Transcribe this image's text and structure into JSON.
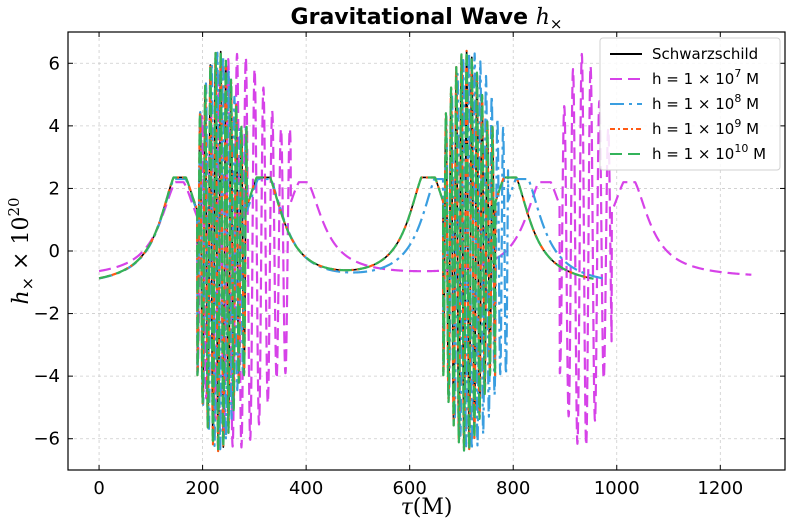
{
  "chart_data": {
    "type": "line",
    "title": "Gravitational Wave h×",
    "title_main": "Gravitational Wave ",
    "title_symbol": "h",
    "title_subscript": "×",
    "xlabel": "τ(M)",
    "xlabel_symbol": "τ",
    "xlabel_unit": "(M)",
    "ylabel": "h× × 10^20",
    "ylabel_symbol": "h",
    "ylabel_subscript": "×",
    "ylabel_factor": " × 10",
    "ylabel_exponent": "20",
    "xlim": [
      -60,
      1325
    ],
    "ylim": [
      -7,
      7
    ],
    "xticks": [
      0,
      200,
      400,
      600,
      800,
      1000,
      1200
    ],
    "xtick_labels": [
      "0",
      "200",
      "400",
      "600",
      "800",
      "1000",
      "1200"
    ],
    "yticks": [
      -6,
      -4,
      -2,
      0,
      2,
      4,
      6
    ],
    "ytick_labels": [
      "−6",
      "−4",
      "−2",
      "0",
      "2",
      "4",
      "6"
    ],
    "grid": true,
    "legend_position": "top-right",
    "series": [
      {
        "name": "Schwarzschild",
        "legend_label": "Schwarzschild",
        "color": "#000000",
        "dash": "solid",
        "baseline": -1.2,
        "peak": 2.35,
        "burst_amplitude": 6.4,
        "peaks": [
          155,
          318,
          635,
          795
        ],
        "bursts": [
          [
            190,
            285
          ],
          [
            665,
            765
          ]
        ],
        "t_range": [
          0,
          955
        ],
        "cycle_period": 10
      },
      {
        "name": "h = 1×10^7 M",
        "legend_prefix": "h = 1 × 10",
        "legend_exp": "7",
        "legend_suffix": " M",
        "color": "#d642e8",
        "dash": "dashed",
        "baseline": -0.9,
        "peak": 2.2,
        "burst_amplitude": 6.3,
        "peaks": [
          155,
          395,
          860,
          1025
        ],
        "bursts": [
          [
            190,
            370
          ],
          [
            890,
            990
          ]
        ],
        "t_range": [
          0,
          1260
        ],
        "cycle_period": 17
      },
      {
        "name": "h = 1×10^8 M",
        "legend_prefix": "h = 1 × 10",
        "legend_exp": "8",
        "legend_suffix": " M",
        "color": "#3a9ee0",
        "dash": "dashdot",
        "baseline": -1.2,
        "peak": 2.3,
        "burst_amplitude": 6.35,
        "peaks": [
          155,
          320,
          660,
          818
        ],
        "bursts": [
          [
            190,
            285
          ],
          [
            665,
            790
          ]
        ],
        "t_range": [
          0,
          975
        ],
        "cycle_period": 11
      },
      {
        "name": "h = 1×10^9 M",
        "legend_prefix": "h = 1 × 10",
        "legend_exp": "9",
        "legend_suffix": " M",
        "color": "#ff5a14",
        "dash": "dotdash",
        "baseline": -1.2,
        "peak": 2.35,
        "burst_amplitude": 6.4,
        "peaks": [
          155,
          318,
          635,
          795
        ],
        "bursts": [
          [
            190,
            285
          ],
          [
            665,
            765
          ]
        ],
        "t_range": [
          0,
          955
        ],
        "cycle_period": 10
      },
      {
        "name": "h = 1×10^10 M",
        "legend_prefix": "h = 1 × 10",
        "legend_exp": "10",
        "legend_suffix": " M",
        "color": "#33b35a",
        "dash": "dashed",
        "baseline": -1.2,
        "peak": 2.35,
        "burst_amplitude": 6.4,
        "peaks": [
          155,
          318,
          635,
          795
        ],
        "bursts": [
          [
            190,
            285
          ],
          [
            665,
            765
          ]
        ],
        "t_range": [
          0,
          955
        ],
        "cycle_period": 10
      }
    ]
  }
}
